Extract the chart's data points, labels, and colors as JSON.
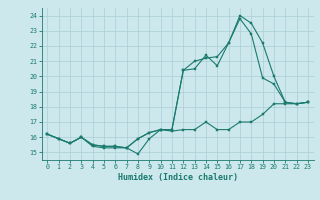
{
  "xlabel": "Humidex (Indice chaleur)",
  "background_color": "#cce8ec",
  "grid_color": "#aacdd4",
  "line_color": "#1a7a6e",
  "xlim": [
    -0.5,
    23.5
  ],
  "ylim": [
    14.5,
    24.5
  ],
  "xticks": [
    0,
    1,
    2,
    3,
    4,
    5,
    6,
    7,
    8,
    9,
    10,
    11,
    12,
    13,
    14,
    15,
    16,
    17,
    18,
    19,
    20,
    21,
    22,
    23
  ],
  "yticks": [
    15,
    16,
    17,
    18,
    19,
    20,
    21,
    22,
    23,
    24
  ],
  "line1_x": [
    0,
    1,
    2,
    3,
    4,
    5,
    6,
    7,
    8,
    9,
    10,
    11,
    12,
    13,
    14,
    15,
    16,
    17,
    18,
    19,
    20,
    21,
    22,
    23
  ],
  "line1_y": [
    16.2,
    15.9,
    15.6,
    16.0,
    15.4,
    15.3,
    15.3,
    15.3,
    14.9,
    15.9,
    16.5,
    16.4,
    16.5,
    16.5,
    17.0,
    16.5,
    16.5,
    17.0,
    17.0,
    17.5,
    18.2,
    18.2,
    18.2,
    18.3
  ],
  "line2_x": [
    0,
    1,
    2,
    3,
    4,
    5,
    6,
    7,
    8,
    9,
    10,
    11,
    12,
    13,
    14,
    15,
    16,
    17,
    18,
    19,
    20,
    21,
    22,
    23
  ],
  "line2_y": [
    16.2,
    15.9,
    15.6,
    16.0,
    15.5,
    15.4,
    15.4,
    15.3,
    15.9,
    16.3,
    16.5,
    16.5,
    20.4,
    21.0,
    21.2,
    21.3,
    22.2,
    24.0,
    23.5,
    22.2,
    20.0,
    18.3,
    18.2,
    18.3
  ],
  "line3_x": [
    0,
    1,
    2,
    3,
    4,
    5,
    6,
    7,
    8,
    9,
    10,
    11,
    12,
    13,
    14,
    15,
    16,
    17,
    18,
    19,
    20,
    21,
    22,
    23
  ],
  "line3_y": [
    16.2,
    15.9,
    15.6,
    16.0,
    15.5,
    15.4,
    15.4,
    15.3,
    15.9,
    16.3,
    16.5,
    16.5,
    20.4,
    20.5,
    21.4,
    20.7,
    22.2,
    23.8,
    22.8,
    19.9,
    19.5,
    18.3,
    18.2,
    18.3
  ]
}
